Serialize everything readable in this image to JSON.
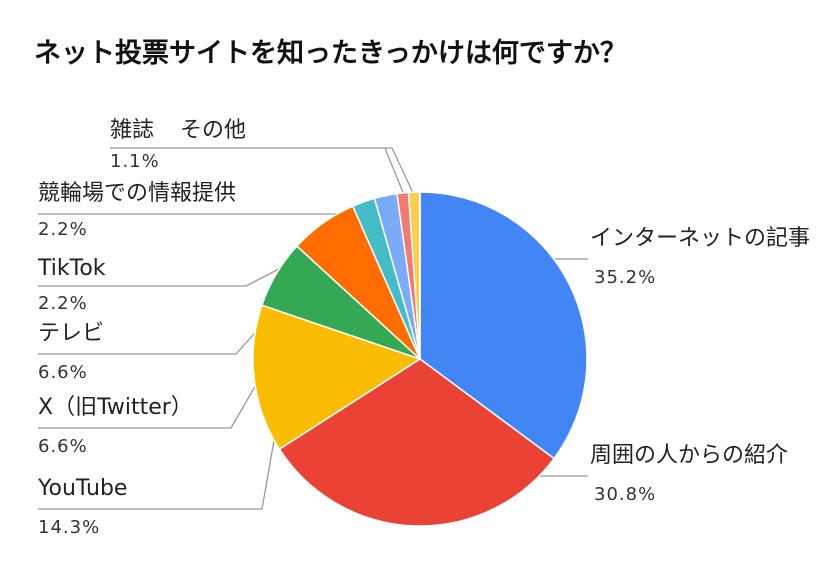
{
  "chart_data": {
    "type": "pie",
    "title": "ネット投票サイトを知ったきっかけは何ですか？",
    "slices": [
      {
        "label": "インターネットの記事",
        "value": 35.2,
        "display": "35.2%",
        "color": "#4285F4"
      },
      {
        "label": "周囲の人からの紹介",
        "value": 30.8,
        "display": "30.8%",
        "color": "#EA4335"
      },
      {
        "label": "YouTube",
        "value": 14.3,
        "display": "14.3%",
        "color": "#FBBC04"
      },
      {
        "label": "X（旧Twitter）",
        "value": 6.6,
        "display": "6.6%",
        "color": "#34A853"
      },
      {
        "label": "テレビ",
        "value": 6.6,
        "display": "6.6%",
        "color": "#FF6D01"
      },
      {
        "label": "TikTok",
        "value": 2.2,
        "display": "2.2%",
        "color": "#46BDC6"
      },
      {
        "label": "競輪場での情報提供",
        "value": 2.2,
        "display": "2.2%",
        "color": "#7BAAF7"
      },
      {
        "label": "雑誌",
        "value": 1.1,
        "display": "1.1%",
        "color": "#F07B72"
      },
      {
        "label": "その他",
        "value": 1.1,
        "display": "1.1%",
        "color": "#FCD04F"
      }
    ]
  }
}
